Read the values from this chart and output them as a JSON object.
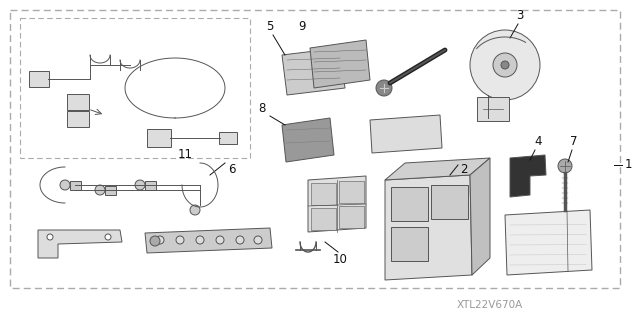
{
  "watermark": "XTL22V670A",
  "bg_color": "#ffffff",
  "gray": "#555555",
  "dark": "#111111",
  "light_gray": "#cccccc",
  "mid_gray": "#888888",
  "font_size": 8.5,
  "font_size_wm": 7.5
}
